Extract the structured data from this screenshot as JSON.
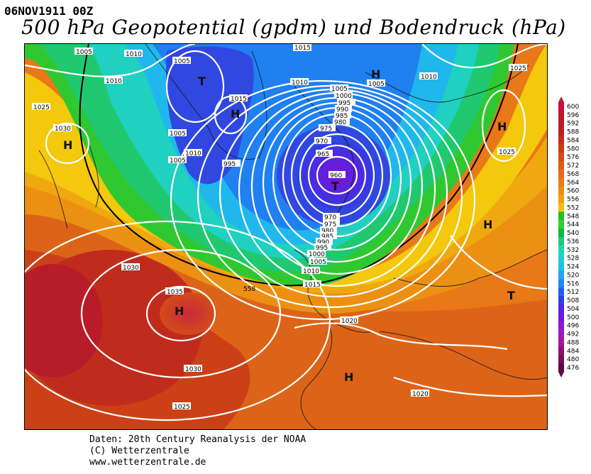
{
  "header": {
    "date": "06NOV1911 00Z",
    "title": "500 hPa Geopotential (gpdm) und Bodendruck (hPa)"
  },
  "credits": {
    "line1": "Daten: 20th Century Reanalysis der NOAA",
    "line2": "(C) Wetterzentrale",
    "line3": "www.wetterzentrale.de"
  },
  "scale": {
    "values": [
      "600",
      "596",
      "592",
      "588",
      "584",
      "580",
      "576",
      "572",
      "568",
      "564",
      "560",
      "556",
      "552",
      "548",
      "544",
      "540",
      "536",
      "532",
      "528",
      "524",
      "520",
      "516",
      "512",
      "508",
      "504",
      "500",
      "496",
      "492",
      "488",
      "484",
      "480",
      "476"
    ],
    "colors": [
      "#c8103c",
      "#c01830",
      "#b81c28",
      "#b82020",
      "#c02c1c",
      "#cc3c18",
      "#d44c18",
      "#dc5c18",
      "#e46c18",
      "#e87c18",
      "#ec8c14",
      "#f0a010",
      "#f4c00c",
      "#20c020",
      "#30d030",
      "#10b840",
      "#20c880",
      "#20d8b0",
      "#20d0d0",
      "#20c0e8",
      "#20a8f0",
      "#2088f0",
      "#2060e8",
      "#3040e0",
      "#5028e0",
      "#7018d8",
      "#8c18d0",
      "#a018c0",
      "#a01898",
      "#901070",
      "#780c58",
      "#600848"
    ]
  },
  "map": {
    "contour_labels": [
      "1005",
      "1010",
      "1015",
      "1010",
      "1005",
      "1010",
      "1025",
      "1030",
      "1005",
      "1015",
      "1010",
      "1005",
      "1005",
      "1010",
      "1005",
      "995",
      "1000",
      "995",
      "990",
      "985",
      "980",
      "975",
      "970",
      "965",
      "960",
      "970",
      "975",
      "980",
      "985",
      "990",
      "995",
      "1000",
      "1005",
      "1010",
      "1015",
      "1010",
      "1025",
      "1025",
      "1030",
      "1035",
      "1030",
      "1020",
      "1020",
      "1025",
      "558"
    ],
    "pressure_centers": [
      "H",
      "T",
      "H",
      "H",
      "H",
      "T",
      "H",
      "H",
      "H",
      "T",
      "H"
    ]
  }
}
